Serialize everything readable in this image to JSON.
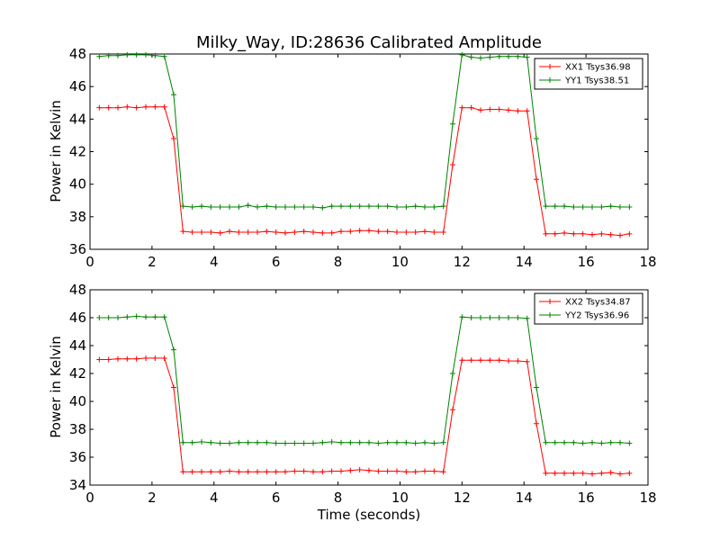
{
  "figure": {
    "title": "Milky_Way, ID:28636 Calibrated Amplitude",
    "xlabel": "Time (seconds)",
    "colors": {
      "XX": "#ff0000",
      "YY": "#008000"
    }
  },
  "chart_data": [
    {
      "type": "line",
      "title": "Milky_Way, ID:28636 Calibrated Amplitude",
      "xlabel": "",
      "ylabel": "Power in Kelvin",
      "xlim": [
        0,
        18
      ],
      "ylim": [
        36,
        48
      ],
      "xticks": [
        0,
        2,
        4,
        6,
        8,
        10,
        12,
        14,
        16,
        18
      ],
      "yticks": [
        36,
        38,
        40,
        42,
        44,
        46,
        48
      ],
      "grid": false,
      "legend": "top-right",
      "series": [
        {
          "name": "XX1 Tsys36.98",
          "color": "#ff0000",
          "x": [
            0.3,
            0.6,
            0.9,
            1.2,
            1.5,
            1.8,
            2.1,
            2.4,
            2.7,
            3.0,
            3.3,
            3.6,
            3.9,
            4.2,
            4.5,
            4.8,
            5.1,
            5.4,
            5.7,
            6.0,
            6.3,
            6.6,
            6.9,
            7.2,
            7.5,
            7.8,
            8.1,
            8.4,
            8.7,
            9.0,
            9.3,
            9.6,
            9.9,
            10.2,
            10.5,
            10.8,
            11.1,
            11.4,
            11.7,
            12.0,
            12.3,
            12.6,
            12.9,
            13.2,
            13.5,
            13.8,
            14.1,
            14.4,
            14.7,
            15.0,
            15.3,
            15.6,
            15.9,
            16.2,
            16.5,
            16.8,
            17.1,
            17.4
          ],
          "y": [
            44.7,
            44.7,
            44.7,
            44.75,
            44.7,
            44.75,
            44.75,
            44.75,
            42.8,
            37.1,
            37.05,
            37.05,
            37.05,
            37.0,
            37.1,
            37.05,
            37.05,
            37.05,
            37.1,
            37.05,
            37.0,
            37.05,
            37.1,
            37.05,
            37.0,
            37.0,
            37.1,
            37.1,
            37.15,
            37.15,
            37.1,
            37.1,
            37.05,
            37.05,
            37.05,
            37.1,
            37.05,
            37.05,
            41.2,
            44.7,
            44.7,
            44.55,
            44.6,
            44.6,
            44.55,
            44.5,
            44.5,
            40.3,
            36.95,
            36.95,
            37.0,
            36.95,
            36.95,
            36.9,
            36.95,
            36.9,
            36.85,
            36.95
          ]
        },
        {
          "name": "YY1 Tsys38.51",
          "color": "#008000",
          "x": [
            0.3,
            0.6,
            0.9,
            1.2,
            1.5,
            1.8,
            2.1,
            2.4,
            2.7,
            3.0,
            3.3,
            3.6,
            3.9,
            4.2,
            4.5,
            4.8,
            5.1,
            5.4,
            5.7,
            6.0,
            6.3,
            6.6,
            6.9,
            7.2,
            7.5,
            7.8,
            8.1,
            8.4,
            8.7,
            9.0,
            9.3,
            9.6,
            9.9,
            10.2,
            10.5,
            10.8,
            11.1,
            11.4,
            11.7,
            12.0,
            12.3,
            12.6,
            12.9,
            13.2,
            13.5,
            13.8,
            14.1,
            14.4,
            14.7,
            15.0,
            15.3,
            15.6,
            15.9,
            16.2,
            16.5,
            16.8,
            17.1,
            17.4
          ],
          "y": [
            47.85,
            47.9,
            47.9,
            47.95,
            47.95,
            47.95,
            47.9,
            47.85,
            45.5,
            38.65,
            38.6,
            38.65,
            38.6,
            38.6,
            38.6,
            38.6,
            38.7,
            38.6,
            38.65,
            38.6,
            38.6,
            38.6,
            38.6,
            38.6,
            38.55,
            38.65,
            38.65,
            38.65,
            38.65,
            38.65,
            38.65,
            38.65,
            38.6,
            38.6,
            38.65,
            38.6,
            38.6,
            38.65,
            43.7,
            47.95,
            47.8,
            47.75,
            47.8,
            47.85,
            47.85,
            47.85,
            47.8,
            42.8,
            38.65,
            38.65,
            38.65,
            38.6,
            38.6,
            38.6,
            38.6,
            38.65,
            38.6,
            38.6
          ]
        }
      ]
    },
    {
      "type": "line",
      "title": "",
      "xlabel": "Time (seconds)",
      "ylabel": "Power in Kelvin",
      "xlim": [
        0,
        18
      ],
      "ylim": [
        34,
        48
      ],
      "xticks": [
        0,
        2,
        4,
        6,
        8,
        10,
        12,
        14,
        16,
        18
      ],
      "yticks": [
        34,
        36,
        38,
        40,
        42,
        44,
        46,
        48
      ],
      "grid": false,
      "legend": "top-right",
      "series": [
        {
          "name": "XX2 Tsys34.87",
          "color": "#ff0000",
          "x": [
            0.3,
            0.6,
            0.9,
            1.2,
            1.5,
            1.8,
            2.1,
            2.4,
            2.7,
            3.0,
            3.3,
            3.6,
            3.9,
            4.2,
            4.5,
            4.8,
            5.1,
            5.4,
            5.7,
            6.0,
            6.3,
            6.6,
            6.9,
            7.2,
            7.5,
            7.8,
            8.1,
            8.4,
            8.7,
            9.0,
            9.3,
            9.6,
            9.9,
            10.2,
            10.5,
            10.8,
            11.1,
            11.4,
            11.7,
            12.0,
            12.3,
            12.6,
            12.9,
            13.2,
            13.5,
            13.8,
            14.1,
            14.4,
            14.7,
            15.0,
            15.3,
            15.6,
            15.9,
            16.2,
            16.5,
            16.8,
            17.1,
            17.4
          ],
          "y": [
            43.0,
            43.0,
            43.05,
            43.05,
            43.05,
            43.1,
            43.1,
            43.1,
            41.0,
            34.95,
            34.95,
            34.95,
            34.95,
            34.95,
            35.0,
            34.95,
            34.95,
            34.95,
            34.95,
            34.95,
            34.95,
            35.0,
            35.0,
            34.95,
            34.95,
            35.0,
            35.0,
            35.05,
            35.1,
            35.05,
            35.0,
            35.0,
            35.0,
            34.95,
            34.95,
            35.0,
            35.0,
            34.95,
            39.4,
            42.95,
            42.95,
            42.95,
            42.95,
            42.95,
            42.9,
            42.9,
            42.85,
            38.4,
            34.85,
            34.85,
            34.85,
            34.85,
            34.85,
            34.8,
            34.85,
            34.9,
            34.8,
            34.85
          ]
        },
        {
          "name": "YY2 Tsys36.96",
          "color": "#008000",
          "x": [
            0.3,
            0.6,
            0.9,
            1.2,
            1.5,
            1.8,
            2.1,
            2.4,
            2.7,
            3.0,
            3.3,
            3.6,
            3.9,
            4.2,
            4.5,
            4.8,
            5.1,
            5.4,
            5.7,
            6.0,
            6.3,
            6.6,
            6.9,
            7.2,
            7.5,
            7.8,
            8.1,
            8.4,
            8.7,
            9.0,
            9.3,
            9.6,
            9.9,
            10.2,
            10.5,
            10.8,
            11.1,
            11.4,
            11.7,
            12.0,
            12.3,
            12.6,
            12.9,
            13.2,
            13.5,
            13.8,
            14.1,
            14.4,
            14.7,
            15.0,
            15.3,
            15.6,
            15.9,
            16.2,
            16.5,
            16.8,
            17.1,
            17.4
          ],
          "y": [
            46.0,
            46.0,
            46.0,
            46.05,
            46.1,
            46.05,
            46.05,
            46.05,
            43.7,
            37.05,
            37.05,
            37.1,
            37.05,
            37.0,
            37.0,
            37.05,
            37.05,
            37.05,
            37.05,
            37.0,
            37.0,
            37.0,
            37.0,
            37.0,
            37.05,
            37.1,
            37.05,
            37.05,
            37.05,
            37.05,
            37.0,
            37.05,
            37.05,
            37.05,
            37.0,
            37.05,
            37.0,
            37.05,
            42.0,
            46.05,
            46.0,
            46.0,
            46.0,
            46.0,
            46.0,
            46.0,
            45.95,
            41.0,
            37.05,
            37.05,
            37.05,
            37.05,
            37.0,
            37.05,
            37.0,
            37.05,
            37.05,
            37.0
          ]
        }
      ]
    }
  ]
}
